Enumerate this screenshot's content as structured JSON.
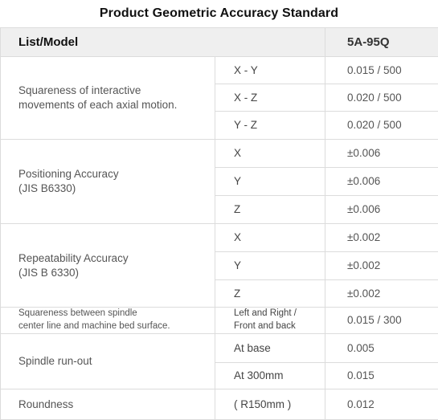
{
  "title": "Product Geometric Accuracy Standard",
  "header": {
    "list_label": "List/Model",
    "model": "5A-95Q"
  },
  "groups": [
    {
      "label": "Squareness of interactive movements of each axial motion.",
      "rows": [
        {
          "axis": "X - Y",
          "value": "0.015 / 500"
        },
        {
          "axis": "X - Z",
          "value": "0.020 / 500"
        },
        {
          "axis": "Y - Z",
          "value": "0.020 / 500"
        }
      ]
    },
    {
      "label_line1": "Positioning Accuracy",
      "label_line2": "(JIS B6330)",
      "rows": [
        {
          "axis": "X",
          "value": "±0.006"
        },
        {
          "axis": "Y",
          "value": "±0.006"
        },
        {
          "axis": "Z",
          "value": "±0.006"
        }
      ]
    },
    {
      "label_line1": "Repeatability Accuracy",
      "label_line2": "(JIS B 6330)",
      "rows": [
        {
          "axis": "X",
          "value": "±0.002"
        },
        {
          "axis": "Y",
          "value": "±0.002"
        },
        {
          "axis": "Z",
          "value": "±0.002"
        }
      ]
    },
    {
      "label_line1": "Squareness between spindle",
      "label_line2": "center line and machine bed surface.",
      "rows": [
        {
          "axis_line1": "Left and Right /",
          "axis_line2": "Front and back",
          "value": "0.015 / 300"
        }
      ]
    },
    {
      "label": "Spindle run-out",
      "rows": [
        {
          "axis": "At base",
          "value": "0.005"
        },
        {
          "axis": "At  300mm",
          "value": "0.015"
        }
      ]
    },
    {
      "label": "Roundness",
      "rows": [
        {
          "axis": "( R150mm )",
          "value": "0.012"
        }
      ]
    }
  ]
}
